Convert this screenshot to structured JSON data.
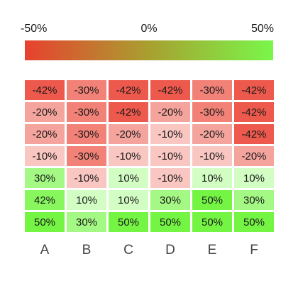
{
  "chart_data": {
    "type": "heatmap",
    "title": "",
    "xlabel": "",
    "ylabel": "",
    "columns": [
      "A",
      "B",
      "C",
      "D",
      "E",
      "F"
    ],
    "values": [
      [
        -42,
        -30,
        -42,
        -42,
        -30,
        -42
      ],
      [
        -20,
        -30,
        -42,
        -20,
        -30,
        -42
      ],
      [
        -20,
        -30,
        -20,
        -10,
        -20,
        -42
      ],
      [
        -10,
        -30,
        -10,
        -10,
        -10,
        -20
      ],
      [
        30,
        -10,
        10,
        -10,
        10,
        10
      ],
      [
        42,
        10,
        10,
        30,
        50,
        30
      ],
      [
        50,
        30,
        50,
        50,
        50,
        50
      ]
    ],
    "value_suffix": "%",
    "color_scale": {
      "min": -50,
      "mid": 0,
      "max": 50,
      "min_label": "-50%",
      "mid_label": "0%",
      "max_label": "50%",
      "min_color": "#e8412f",
      "mid_color": "#a8a030",
      "max_color": "#79f74a",
      "placement": "top"
    },
    "colors": {
      "neg_full": "#ea3e2f",
      "neg_light": "#fde8e6",
      "pos_full": "#74f543",
      "pos_light": "#eaffe3"
    }
  }
}
